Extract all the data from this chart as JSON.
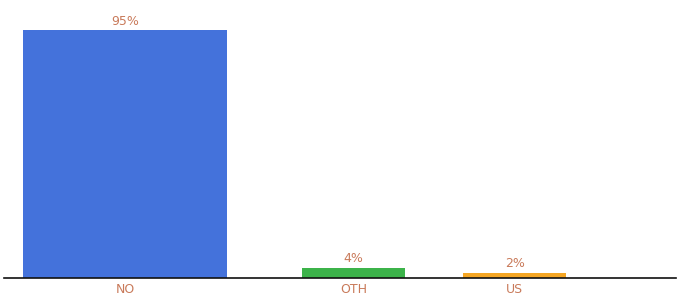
{
  "categories": [
    "NO",
    "OTH",
    "US"
  ],
  "values": [
    95,
    4,
    2
  ],
  "bar_colors": [
    "#4472db",
    "#3cb34a",
    "#f5a623"
  ],
  "labels": [
    "95%",
    "4%",
    "2%"
  ],
  "ylim": [
    0,
    105
  ],
  "background_color": "#ffffff",
  "label_fontsize": 9,
  "tick_fontsize": 9,
  "tick_color": "#c97a5a",
  "label_color": "#c97a5a",
  "bar_width": 0.55,
  "x_positions": [
    0.18,
    0.52,
    0.76
  ],
  "xlim": [
    0.0,
    1.0
  ]
}
